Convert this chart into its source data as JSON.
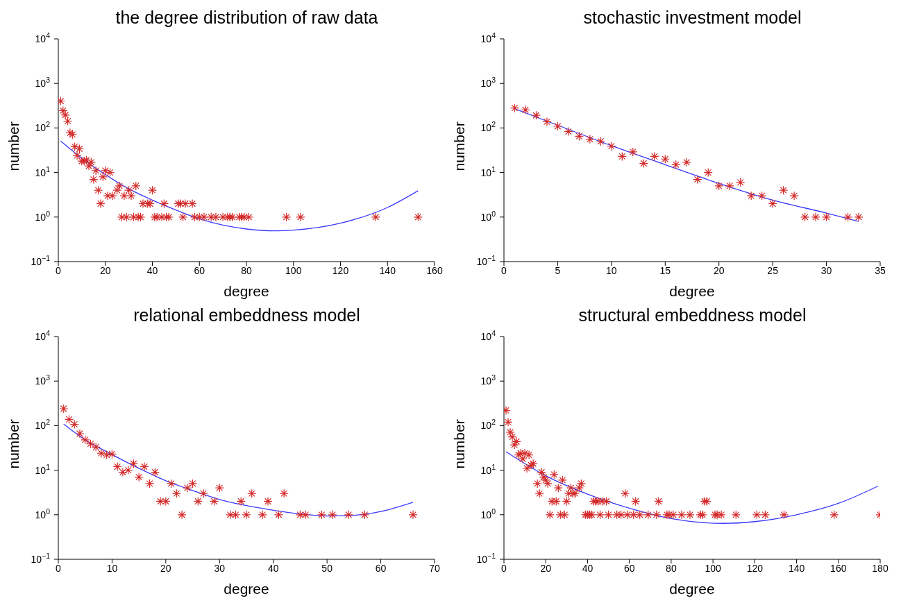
{
  "chart_data": [
    {
      "type": "scatter",
      "title": "the degree distribution of raw data",
      "xlabel": "degree",
      "ylabel": "number",
      "log": true,
      "marker": "cross",
      "xlim": [
        0,
        160
      ],
      "xticks": [
        0,
        20,
        40,
        60,
        80,
        100,
        120,
        140,
        160
      ],
      "ylim": [
        0.1,
        10000
      ],
      "yticks": [
        {
          "value": 0.1,
          "label": "10$^{−1}$"
        },
        {
          "value": 1,
          "label": "10$^{0}$"
        },
        {
          "value": 10,
          "label": "10$^{1}$"
        },
        {
          "value": 100,
          "label": "10$^{2}$"
        },
        {
          "value": 1000,
          "label": "10$^{3}$"
        },
        {
          "value": 10000,
          "label": "10$^{4}$"
        }
      ],
      "series": [
        {
          "type": "scatter",
          "color": "#d42a2a",
          "x": [
            1,
            2,
            3,
            4,
            5,
            6,
            7,
            8,
            9,
            10,
            11,
            12,
            13,
            14,
            15,
            16,
            17,
            18,
            19,
            20,
            21,
            22,
            23,
            25,
            26,
            27,
            28,
            29,
            30,
            31,
            32,
            33,
            34,
            35,
            36,
            38,
            39,
            40,
            41,
            42,
            44,
            45,
            46,
            47,
            51,
            52,
            53,
            54,
            57,
            58,
            60,
            62,
            65,
            67,
            70,
            72,
            73,
            74,
            77,
            78,
            79,
            81,
            97,
            103,
            135,
            153
          ],
          "values": [
            400,
            245,
            195,
            142,
            78,
            71,
            38,
            24,
            34,
            18,
            18,
            19,
            14,
            17,
            7,
            11,
            4,
            2,
            8,
            11,
            3,
            10,
            3,
            4,
            5,
            1,
            3,
            1,
            4,
            3,
            1,
            5,
            1,
            1,
            2,
            2,
            2,
            4,
            1,
            1,
            1,
            2,
            1,
            1,
            2,
            2,
            1,
            2,
            2,
            1,
            1,
            1,
            1,
            1,
            1,
            1,
            1,
            1,
            1,
            1,
            1,
            1,
            1,
            1,
            1,
            1
          ]
        },
        {
          "type": "line",
          "color": "#3a3aff",
          "marker": "none",
          "x": [
            1,
            10,
            20,
            30,
            40,
            50,
            60,
            70,
            80,
            92,
            100,
            120,
            140,
            153
          ],
          "values": [
            51,
            21,
            9,
            4.3,
            2.4,
            1.44,
            0.91,
            0.66,
            0.54,
            0.49,
            0.51,
            0.73,
            1.64,
            3.9
          ]
        }
      ]
    },
    {
      "type": "scatter",
      "title": "stochastic investment model",
      "xlabel": "degree",
      "ylabel": "number",
      "log": true,
      "marker": "cross",
      "xlim": [
        0,
        35
      ],
      "xticks": [
        0,
        5,
        10,
        15,
        20,
        25,
        30,
        35
      ],
      "ylim": [
        0.1,
        10000
      ],
      "yticks": [
        {
          "value": 0.1,
          "label": "10$^{−1}$"
        },
        {
          "value": 1,
          "label": "10$^{0}$"
        },
        {
          "value": 10,
          "label": "10$^{1}$"
        },
        {
          "value": 100,
          "label": "10$^{2}$"
        },
        {
          "value": 1000,
          "label": "10$^{3}$"
        },
        {
          "value": 10000,
          "label": "10$^{4}$"
        }
      ],
      "series": [
        {
          "type": "scatter",
          "color": "#d42a2a",
          "x": [
            1,
            2,
            3,
            4,
            5,
            6,
            7,
            8,
            9,
            10,
            11,
            12,
            13,
            14,
            15,
            16,
            17,
            18,
            19,
            20,
            21,
            22,
            23,
            24,
            25,
            26,
            27,
            28,
            29,
            30,
            32,
            33
          ],
          "values": [
            280,
            255,
            192,
            138,
            109,
            83,
            65,
            56,
            50,
            39,
            23,
            29,
            16,
            23,
            20,
            15,
            17,
            7,
            10,
            5,
            5,
            6,
            3,
            3,
            2,
            4,
            3,
            1,
            1,
            1,
            1,
            1
          ]
        },
        {
          "type": "line",
          "color": "#3a3aff",
          "marker": "none",
          "x": [
            1,
            5,
            10,
            15,
            20,
            25,
            30,
            33
          ],
          "values": [
            270,
            115,
            40,
            15,
            5.7,
            2.4,
            1.23,
            0.8
          ]
        }
      ]
    },
    {
      "type": "scatter",
      "title": "relational embeddness model",
      "xlabel": "degree",
      "ylabel": "number",
      "log": true,
      "marker": "cross",
      "xlim": [
        0,
        70
      ],
      "xticks": [
        0,
        10,
        20,
        30,
        40,
        50,
        60,
        70
      ],
      "ylim": [
        0.1,
        10000
      ],
      "yticks": [
        {
          "value": 0.1,
          "label": "10$^{−1}$"
        },
        {
          "value": 1,
          "label": "10$^{0}$"
        },
        {
          "value": 10,
          "label": "10$^{1}$"
        },
        {
          "value": 100,
          "label": "10$^{2}$"
        },
        {
          "value": 1000,
          "label": "10$^{3}$"
        },
        {
          "value": 10000,
          "label": "10$^{4}$"
        }
      ],
      "series": [
        {
          "type": "scatter",
          "color": "#d42a2a",
          "x": [
            1,
            2,
            3,
            4,
            5,
            6,
            7,
            8,
            9,
            10,
            11,
            12,
            13,
            14,
            15,
            16,
            17,
            18,
            19,
            20,
            21,
            22,
            23,
            24,
            25,
            26,
            27,
            29,
            30,
            32,
            33,
            34,
            35,
            36,
            38,
            39,
            41,
            42,
            45,
            46,
            49,
            51,
            54,
            57,
            66
          ],
          "values": [
            240,
            138,
            107,
            66,
            48,
            39,
            33,
            24,
            22,
            23,
            12,
            9,
            10,
            14,
            7,
            12,
            5,
            9,
            2,
            2,
            5,
            3,
            1,
            4,
            5,
            2,
            3,
            2,
            4,
            1,
            1,
            2,
            1,
            3,
            1,
            2,
            1,
            3,
            1,
            1,
            1,
            1,
            1,
            1,
            1
          ]
        },
        {
          "type": "line",
          "color": "#3a3aff",
          "marker": "none",
          "x": [
            1,
            5,
            10,
            15,
            20,
            25,
            30,
            35,
            40,
            45,
            50,
            55,
            60,
            66
          ],
          "values": [
            108,
            48,
            22.4,
            11,
            5.8,
            3.5,
            2.2,
            1.6,
            1.26,
            1.04,
            0.94,
            0.97,
            1.18,
            1.9
          ]
        }
      ]
    },
    {
      "type": "scatter",
      "title": "structural embeddness model",
      "xlabel": "degree",
      "ylabel": "number",
      "log": true,
      "marker": "cross",
      "xlim": [
        0,
        180
      ],
      "xticks": [
        0,
        20,
        40,
        60,
        80,
        100,
        120,
        140,
        160,
        180
      ],
      "ylim": [
        0.1,
        10000
      ],
      "yticks": [
        {
          "value": 0.1,
          "label": "10$^{−1}$"
        },
        {
          "value": 1,
          "label": "10$^{0}$"
        },
        {
          "value": 10,
          "label": "10$^{1}$"
        },
        {
          "value": 100,
          "label": "10$^{2}$"
        },
        {
          "value": 1000,
          "label": "10$^{3}$"
        },
        {
          "value": 10000,
          "label": "10$^{4}$"
        }
      ],
      "series": [
        {
          "type": "scatter",
          "color": "#d42a2a",
          "x": [
            1,
            2,
            3,
            4,
            5,
            6,
            7,
            8,
            9,
            10,
            11,
            12,
            13,
            14,
            16,
            17,
            18,
            19,
            20,
            21,
            22,
            23,
            24,
            25,
            26,
            27,
            28,
            29,
            30,
            31,
            32,
            33,
            34,
            36,
            37,
            39,
            40,
            41,
            42,
            43,
            44,
            45,
            46,
            47,
            49,
            50,
            54,
            56,
            58,
            59,
            62,
            63,
            65,
            69,
            73,
            74,
            78,
            79,
            81,
            85,
            89,
            94,
            95,
            96,
            97,
            101,
            102,
            104,
            111,
            121,
            125,
            134,
            158,
            180
          ],
          "values": [
            220,
            120,
            71,
            56,
            37,
            44,
            22,
            24,
            18,
            24,
            11,
            22,
            13,
            14,
            5,
            3,
            9,
            7,
            6,
            5,
            1,
            2,
            8,
            2,
            4,
            1,
            6,
            1,
            2,
            3,
            4,
            3,
            3,
            4,
            5,
            1,
            1,
            1,
            1,
            2,
            2,
            2,
            1,
            2,
            2,
            1,
            1,
            1,
            3,
            1,
            1,
            2,
            1,
            1,
            1,
            2,
            1,
            1,
            1,
            1,
            1,
            1,
            1,
            2,
            2,
            1,
            1,
            1,
            1,
            1,
            1,
            1,
            1,
            1
          ]
        },
        {
          "type": "line",
          "color": "#3a3aff",
          "marker": "none",
          "x": [
            1,
            20,
            40,
            60,
            80,
            105,
            120,
            140,
            160,
            179
          ],
          "values": [
            26,
            7.5,
            2.9,
            1.4,
            0.82,
            0.64,
            0.7,
            1.0,
            1.8,
            4.4
          ]
        }
      ]
    }
  ]
}
